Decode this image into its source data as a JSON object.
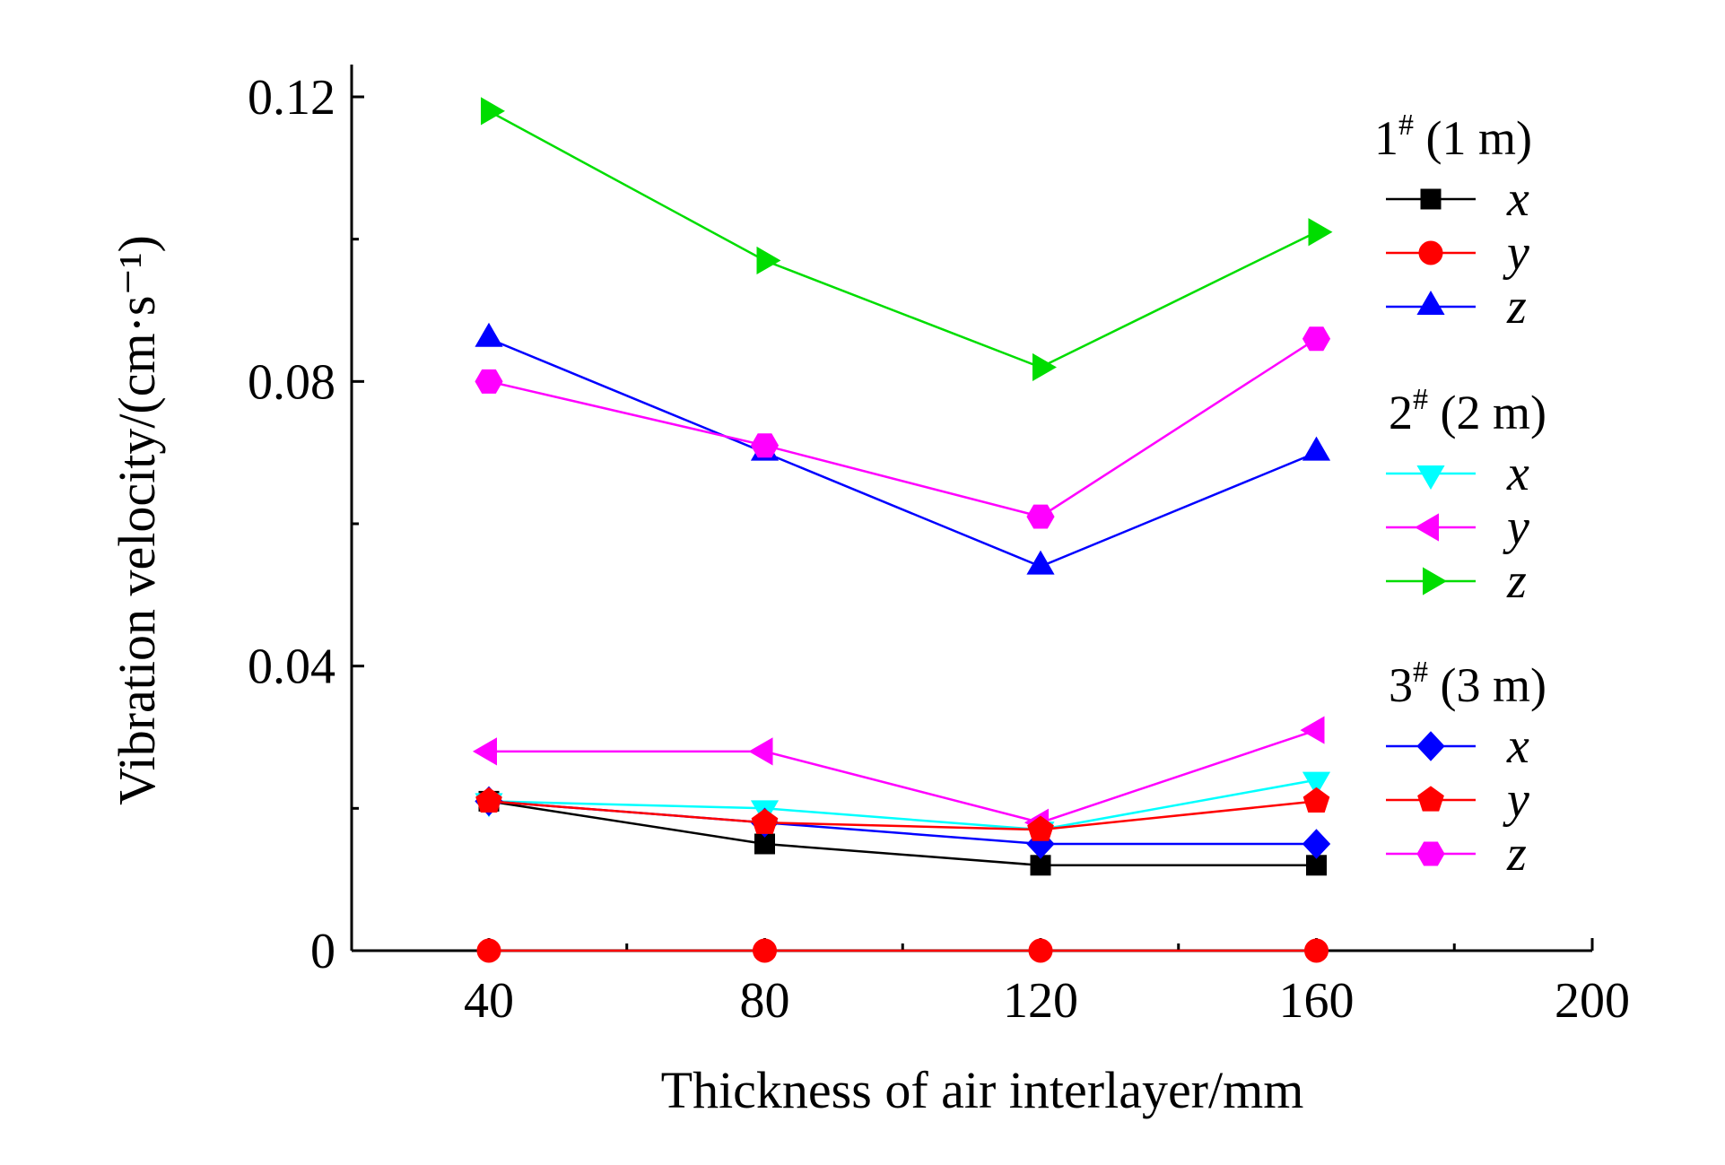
{
  "chart_data": {
    "type": "line",
    "xlabel": "Thickness of air interlayer/mm",
    "ylabel": "Vibration velocity/(cm·s⁻¹)",
    "xlim": [
      20,
      200
    ],
    "ylim": [
      0,
      0.125
    ],
    "x_ticks": [
      40,
      80,
      120,
      160,
      200
    ],
    "x_tick_labels": [
      "40",
      "80",
      "120",
      "160",
      "200"
    ],
    "y_ticks": [
      0,
      0.04,
      0.08,
      0.12
    ],
    "y_tick_labels": [
      "0",
      "0.04",
      "0.08",
      "0.12"
    ],
    "grid": false,
    "legend_position": "right",
    "x": [
      40,
      80,
      120,
      160
    ],
    "legend_groups": [
      {
        "heading": "1# (1 m)",
        "heading_main": "1",
        "heading_sup": "#",
        "heading_rest": " (1 m)"
      },
      {
        "heading": "2# (2 m)",
        "heading_main": "2",
        "heading_sup": "#",
        "heading_rest": " (2 m)"
      },
      {
        "heading": "3# (3 m)",
        "heading_main": "3",
        "heading_sup": "#",
        "heading_rest": " (3 m)"
      }
    ],
    "series": [
      {
        "group": 0,
        "name": "x",
        "color": "#000000",
        "marker": "square",
        "values": [
          0.021,
          0.015,
          0.012,
          0.012
        ]
      },
      {
        "group": 0,
        "name": "y",
        "color": "#ff0000",
        "marker": "circle",
        "values": [
          0.0,
          0.0,
          0.0,
          0.0
        ]
      },
      {
        "group": 0,
        "name": "z",
        "color": "#0000ff",
        "marker": "triangle-up",
        "values": [
          0.086,
          0.07,
          0.054,
          0.07
        ]
      },
      {
        "group": 1,
        "name": "x",
        "color": "#00ffff",
        "marker": "triangle-down",
        "values": [
          0.021,
          0.02,
          0.017,
          0.024
        ]
      },
      {
        "group": 1,
        "name": "y",
        "color": "#ff00ff",
        "marker": "triangle-left",
        "values": [
          0.028,
          0.028,
          0.018,
          0.031
        ]
      },
      {
        "group": 1,
        "name": "z",
        "color": "#00dd00",
        "marker": "triangle-right",
        "values": [
          0.118,
          0.097,
          0.082,
          0.101
        ]
      },
      {
        "group": 2,
        "name": "x",
        "color": "#0000ff",
        "marker": "diamond",
        "values": [
          0.021,
          0.018,
          0.015,
          0.015
        ]
      },
      {
        "group": 2,
        "name": "y",
        "color": "#ff0000",
        "marker": "pentagon",
        "values": [
          0.021,
          0.018,
          0.017,
          0.021
        ]
      },
      {
        "group": 2,
        "name": "z",
        "color": "#ff00ff",
        "marker": "hexagon",
        "values": [
          0.08,
          0.071,
          0.061,
          0.086
        ]
      }
    ]
  }
}
